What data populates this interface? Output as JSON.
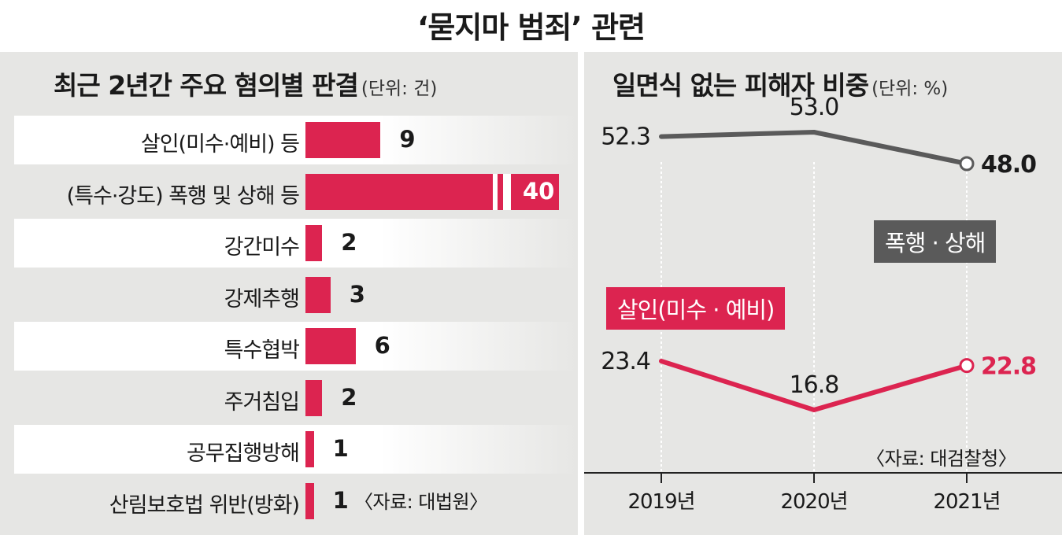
{
  "title": "‘묻지마 범죄’ 관련",
  "left_panel": {
    "title": "최근 2년간 주요 혐의별 판결",
    "unit": "(단위: 건)",
    "source": "〈자료: 대법원〉"
  },
  "right_panel": {
    "title": "일면식 없는 피해자 비중",
    "unit": "(단위: %)",
    "source": "〈자료: 대검찰청〉",
    "tag_assault": "폭행 · 상해",
    "tag_murder": "살인(미수 · 예비)"
  },
  "colors": {
    "accent": "#dc2450",
    "gray_line": "#5a5a5a",
    "panel_bg": "#e6e6e4"
  },
  "chart_data": [
    {
      "type": "bar",
      "orientation": "horizontal",
      "title": "최근 2년간 주요 혐의별 판결",
      "unit": "(단위: 건)",
      "categories": [
        "살인(미수·예비) 등",
        "(특수·강도) 폭행 및 상해 등",
        "강간미수",
        "강제추행",
        "특수협박",
        "주거침입",
        "공무집행방해",
        "산림보호법 위반(방화)"
      ],
      "values": [
        9,
        40,
        2,
        3,
        6,
        2,
        1,
        1
      ],
      "axis_break_on": "(특수·강도) 폭행 및 상해 등",
      "bar_color": "#dc2450"
    },
    {
      "type": "line",
      "title": "일면식 없는 피해자 비중",
      "unit": "(단위: %)",
      "x": [
        "2019년",
        "2020년",
        "2021년"
      ],
      "series": [
        {
          "name": "폭행 · 상해",
          "values": [
            52.3,
            53.0,
            48.0
          ],
          "labels": [
            "52.3",
            "53.0",
            "48.0"
          ],
          "color": "#5a5a5a"
        },
        {
          "name": "살인(미수 · 예비)",
          "values": [
            23.4,
            16.8,
            22.8
          ],
          "labels": [
            "23.4",
            "16.8",
            "22.8"
          ],
          "color": "#dc2450"
        }
      ]
    }
  ]
}
